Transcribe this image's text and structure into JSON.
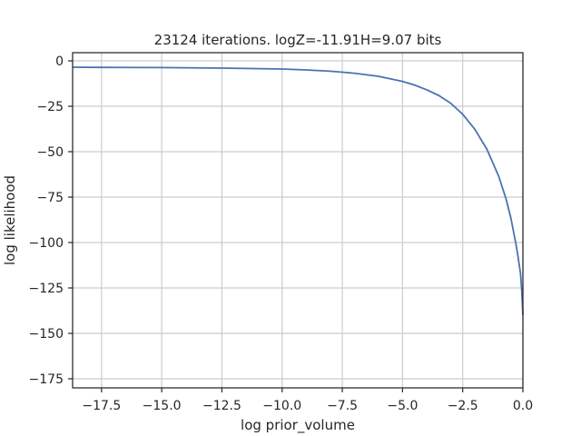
{
  "chart_data": {
    "type": "line",
    "title": "23124 iterations. logZ=-11.91H=9.07 bits",
    "xlabel": "log prior_volume",
    "ylabel": "log likelihood",
    "xlim": [
      -18.7,
      0.0
    ],
    "ylim": [
      -180,
      4.5
    ],
    "grid": true,
    "x_ticks": [
      -17.5,
      -15.0,
      -12.5,
      -10.0,
      -7.5,
      -5.0,
      -2.5,
      0.0
    ],
    "x_tick_labels": [
      "−17.5",
      "−15.0",
      "−12.5",
      "−10.0",
      "−7.5",
      "−5.0",
      "−2.5",
      "0.0"
    ],
    "y_ticks": [
      0,
      -25,
      -50,
      -75,
      -100,
      -125,
      -150,
      -175
    ],
    "y_tick_labels": [
      "0",
      "−25",
      "−50",
      "−75",
      "−100",
      "−125",
      "−150",
      "−175"
    ],
    "series": [
      {
        "color": "#4c72b0",
        "x": [
          -18.7,
          -17.5,
          -15.0,
          -12.5,
          -10.0,
          -9.0,
          -8.0,
          -7.0,
          -6.0,
          -5.0,
          -4.5,
          -4.0,
          -3.5,
          -3.0,
          -2.5,
          -2.0,
          -1.5,
          -1.0,
          -0.7,
          -0.5,
          -0.3,
          -0.2,
          -0.1,
          -0.05,
          0.0
        ],
        "y": [
          -3.5,
          -3.6,
          -3.7,
          -4.0,
          -4.5,
          -5.0,
          -5.7,
          -6.8,
          -8.5,
          -11.3,
          -13.3,
          -15.9,
          -19.0,
          -23.3,
          -29.4,
          -37.6,
          -48.5,
          -63.7,
          -76.0,
          -86.5,
          -100.0,
          -108.0,
          -117.0,
          -126.0,
          -140.0
        ]
      }
    ]
  }
}
